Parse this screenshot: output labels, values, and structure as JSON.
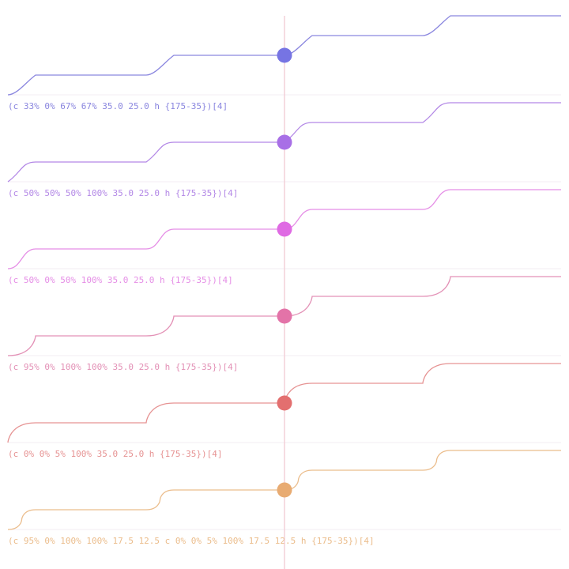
{
  "colors": {
    "playhead": "#f1c6cf",
    "baseline": "#f3ecf3"
  },
  "rows": [
    {
      "label": "(c 33% 0% 67% 67% 35.0 25.0 h {175-35})[4]",
      "color": "#8a86df",
      "dot": "#7674e3",
      "curve": [
        0.33,
        0.0,
        0.67,
        0.67
      ]
    },
    {
      "label": "(c 50% 50% 50% 100% 35.0 25.0 h {175-35})[4]",
      "color": "#b388e6",
      "dot": "#a86fe6",
      "curve": [
        0.5,
        0.5,
        0.5,
        1.0
      ]
    },
    {
      "label": "(c 50% 0% 50% 100% 35.0 25.0 h {175-35})[4]",
      "color": "#e58ee6",
      "dot": "#df6ae3",
      "curve": [
        0.5,
        0.0,
        0.5,
        1.0
      ]
    },
    {
      "label": "(c 95% 0% 100% 100% 35.0 25.0 h {175-35})[4]",
      "color": "#e391b6",
      "dot": "#e373a8",
      "curve": [
        0.95,
        0.0,
        1.0,
        1.0
      ]
    },
    {
      "label": "(c 0% 0% 5% 100% 35.0 25.0 h {175-35})[4]",
      "color": "#e69393",
      "dot": "#e36f6f",
      "curve": [
        0.0,
        0.0,
        0.05,
        1.0
      ]
    },
    {
      "label": "(c 95% 0% 100% 100% 17.5 12.5 c 0% 0% 5% 100% 17.5 12.5 h {175-35})[4]",
      "color": "#ebbd8c",
      "dot": "#e8ab72",
      "curve": null
    }
  ]
}
